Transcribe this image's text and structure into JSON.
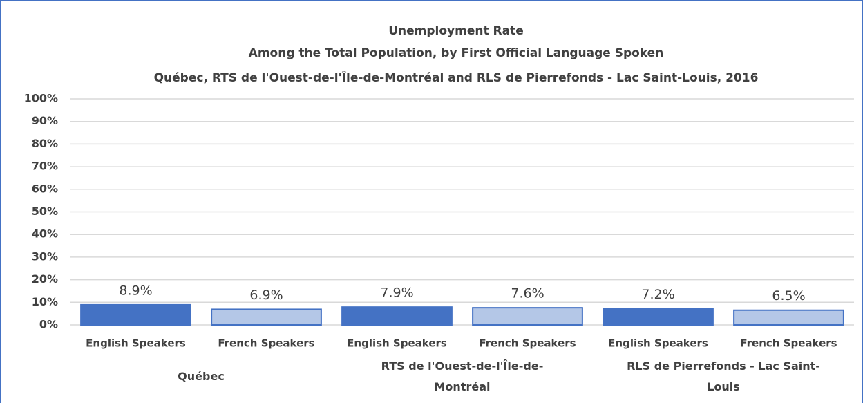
{
  "chart_data": {
    "type": "bar",
    "title": "Unemployment Rate",
    "subtitles": [
      "Among the Total Population, by First Official Language Spoken",
      "Québec, RTS de l'Ouest-de-l'Île-de-Montréal and RLS de Pierrefonds - Lac Saint-Louis, 2016"
    ],
    "categories": [
      "English Speakers",
      "French Speakers",
      "English Speakers",
      "French Speakers",
      "English Speakers",
      "French Speakers"
    ],
    "groups": [
      "Québec",
      "RTS de l'Ouest-de-l'Île-de-Montréal",
      "RLS de Pierrefonds - Lac Saint-Louis"
    ],
    "values": [
      8.9,
      6.9,
      7.9,
      7.6,
      7.2,
      6.5
    ],
    "value_labels": [
      "8.9%",
      "6.9%",
      "7.9%",
      "7.6%",
      "7.2%",
      "6.5%"
    ],
    "colors": [
      "#4472c4",
      "#b4c7e7",
      "#4472c4",
      "#b4c7e7",
      "#4472c4",
      "#b4c7e7"
    ],
    "ylim": [
      0,
      100
    ],
    "yticks": [
      {
        "value": 0,
        "label": "0%"
      },
      {
        "value": 10,
        "label": "10%"
      },
      {
        "value": 20,
        "label": "20%"
      },
      {
        "value": 30,
        "label": "30%"
      },
      {
        "value": 40,
        "label": "40%"
      },
      {
        "value": 50,
        "label": "50%"
      },
      {
        "value": 60,
        "label": "60%"
      },
      {
        "value": 70,
        "label": "70%"
      },
      {
        "value": 80,
        "label": "80%"
      },
      {
        "value": 90,
        "label": "90%"
      },
      {
        "value": 100,
        "label": "100%"
      }
    ],
    "grid": true
  }
}
